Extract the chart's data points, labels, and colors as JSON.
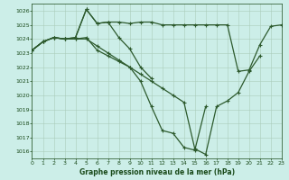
{
  "title": "Graphe pression niveau de la mer (hPa)",
  "background_color": "#cceee8",
  "grid_color": "#aaccbb",
  "line_color": "#2d5a2d",
  "xlim": [
    0,
    23
  ],
  "ylim": [
    1015.5,
    1026.5
  ],
  "xtick_labels": [
    "0",
    "1",
    "2",
    "3",
    "4",
    "5",
    "6",
    "7",
    "8",
    "9",
    "10",
    "11",
    "12",
    "13",
    "14",
    "15",
    "16",
    "17",
    "18",
    "19",
    "20",
    "21",
    "22",
    "23"
  ],
  "yticks": [
    1016,
    1017,
    1018,
    1019,
    1020,
    1021,
    1022,
    1023,
    1024,
    1025,
    1026
  ],
  "series": [
    [
      1023.2,
      1023.8,
      1024.1,
      1024.0,
      1024.1,
      1026.1,
      1025.1,
      1025.2,
      1025.2,
      1025.1,
      1025.2,
      1025.2,
      1025.0,
      1025.0,
      1025.0,
      1025.0,
      1025.0,
      1025.0,
      1025.0,
      1021.7,
      1021.8,
      1023.6,
      1024.9,
      1025.0
    ],
    [
      1023.2,
      1023.8,
      1024.1,
      1024.0,
      1024.1,
      1026.1,
      1025.1,
      1025.2,
      1024.1,
      1023.3,
      1022.0,
      1021.2,
      null,
      null,
      null,
      null,
      null,
      null,
      null,
      null,
      null,
      null,
      null,
      null
    ],
    [
      1023.2,
      1023.8,
      1024.1,
      1024.0,
      1024.0,
      1024.0,
      1023.5,
      1023.0,
      1022.5,
      1022.0,
      1021.5,
      1021.0,
      1020.5,
      1020.0,
      1019.5,
      1016.2,
      1015.8,
      1019.2,
      1019.6,
      1020.2,
      1021.7,
      1022.8,
      null,
      null
    ],
    [
      1023.2,
      1023.8,
      1024.1,
      1024.0,
      1024.0,
      1024.1,
      1023.2,
      1022.8,
      1022.4,
      1022.0,
      1021.0,
      1019.2,
      1017.5,
      1017.3,
      1016.3,
      1016.1,
      1019.2,
      null,
      null,
      null,
      null,
      null,
      null,
      null
    ]
  ]
}
